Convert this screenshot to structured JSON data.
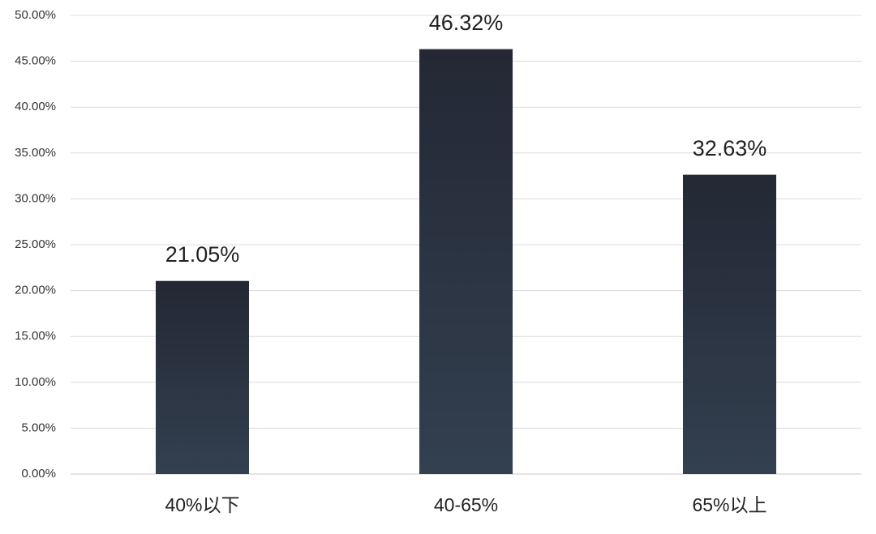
{
  "chart_data": {
    "type": "bar",
    "categories": [
      "40%以下",
      "40-65%",
      "65%以上"
    ],
    "values": [
      21.05,
      46.32,
      32.63
    ],
    "value_labels": [
      "21.05%",
      "46.32%",
      "32.63%"
    ],
    "color": "#334050",
    "ylim": [
      0,
      50
    ],
    "yticks": [
      {
        "value": 0,
        "label": "0.00%"
      },
      {
        "value": 5,
        "label": "5.00%"
      },
      {
        "value": 10,
        "label": "10.00%"
      },
      {
        "value": 15,
        "label": "15.00%"
      },
      {
        "value": 20,
        "label": "20.00%"
      },
      {
        "value": 25,
        "label": "25.00%"
      },
      {
        "value": 30,
        "label": "30.00%"
      },
      {
        "value": 35,
        "label": "35.00%"
      },
      {
        "value": 40,
        "label": "40.00%"
      },
      {
        "value": 45,
        "label": "45.00%"
      },
      {
        "value": 50,
        "label": "50.00%"
      }
    ],
    "grid": true
  }
}
